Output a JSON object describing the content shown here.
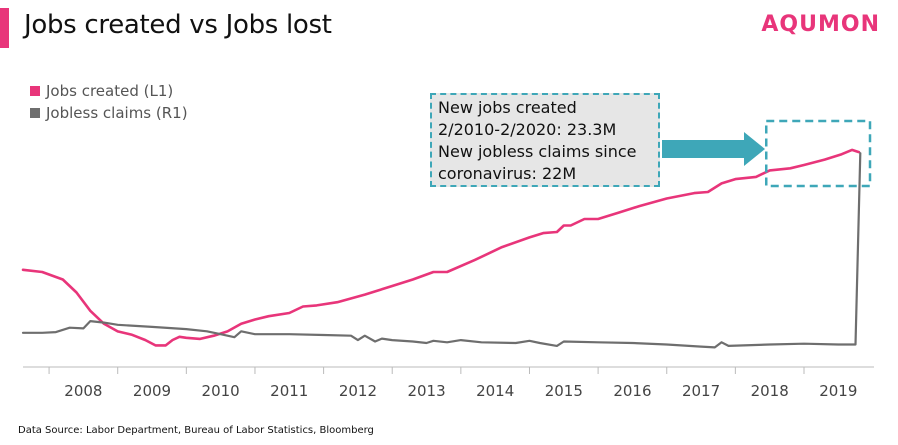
{
  "header": {
    "title": "Jobs created vs Jobs lost",
    "brand": "AQUMON"
  },
  "colors": {
    "accent": "#e8357a",
    "jobs_created": "#e8357a",
    "jobless_claims": "#6e6e6e",
    "annotation": "#3ea7b8"
  },
  "legend": [
    {
      "label": "Jobs created (L1)",
      "color": "#e8357a"
    },
    {
      "label": "Jobless claims (R1)",
      "color": "#6e6e6e"
    }
  ],
  "annotation": {
    "lines": [
      "New jobs created",
      "2/2010-2/2020: 23.3M",
      "New jobless claims since",
      "coronavirus: 22M"
    ]
  },
  "source": "Data Source: Labor Department,  Bureau  of Labor Statistics, Bloomberg",
  "chart_data": {
    "type": "line",
    "x_ticks": [
      "2008",
      "2009",
      "2010",
      "2011",
      "2012",
      "2013",
      "2014",
      "2015",
      "2016",
      "2017",
      "2018",
      "2019"
    ],
    "x_range": [
      2007.62,
      2020.02
    ],
    "grid": false,
    "legend_position": "top-left",
    "series": [
      {
        "name": "Jobs created (L1)",
        "axis": "left",
        "color": "#e8357a",
        "points": [
          [
            2007.62,
            0.65
          ],
          [
            2007.9,
            0.63
          ],
          [
            2008.2,
            0.56
          ],
          [
            2008.4,
            0.44
          ],
          [
            2008.6,
            0.27
          ],
          [
            2008.8,
            0.15
          ],
          [
            2009.0,
            0.08
          ],
          [
            2009.2,
            0.05
          ],
          [
            2009.4,
            0.0
          ],
          [
            2009.55,
            -0.05
          ],
          [
            2009.7,
            -0.05
          ],
          [
            2009.8,
            0.0
          ],
          [
            2009.9,
            0.03
          ],
          [
            2010.0,
            0.02
          ],
          [
            2010.2,
            0.01
          ],
          [
            2010.4,
            0.04
          ],
          [
            2010.6,
            0.08
          ],
          [
            2010.8,
            0.15
          ],
          [
            2011.0,
            0.19
          ],
          [
            2011.2,
            0.22
          ],
          [
            2011.5,
            0.25
          ],
          [
            2011.7,
            0.31
          ],
          [
            2011.9,
            0.32
          ],
          [
            2012.2,
            0.35
          ],
          [
            2012.6,
            0.42
          ],
          [
            2013.0,
            0.5
          ],
          [
            2013.3,
            0.56
          ],
          [
            2013.6,
            0.63
          ],
          [
            2013.8,
            0.63
          ],
          [
            2014.2,
            0.74
          ],
          [
            2014.6,
            0.86
          ],
          [
            2015.0,
            0.95
          ],
          [
            2015.2,
            0.99
          ],
          [
            2015.4,
            1.0
          ],
          [
            2015.5,
            1.06
          ],
          [
            2015.6,
            1.06
          ],
          [
            2015.8,
            1.12
          ],
          [
            2016.0,
            1.12
          ],
          [
            2016.3,
            1.18
          ],
          [
            2016.6,
            1.24
          ],
          [
            2017.0,
            1.31
          ],
          [
            2017.4,
            1.36
          ],
          [
            2017.6,
            1.37
          ],
          [
            2017.8,
            1.45
          ],
          [
            2018.0,
            1.49
          ],
          [
            2018.3,
            1.51
          ],
          [
            2018.5,
            1.57
          ],
          [
            2018.8,
            1.59
          ],
          [
            2019.0,
            1.62
          ],
          [
            2019.3,
            1.67
          ],
          [
            2019.55,
            1.72
          ],
          [
            2019.7,
            1.76
          ],
          [
            2019.8,
            1.74
          ]
        ]
      },
      {
        "name": "Jobless claims (R1)",
        "axis": "right",
        "color": "#6e6e6e",
        "points": [
          [
            2007.62,
            0.7
          ],
          [
            2007.9,
            0.7
          ],
          [
            2008.1,
            0.75
          ],
          [
            2008.3,
            1.05
          ],
          [
            2008.5,
            1.0
          ],
          [
            2008.6,
            1.5
          ],
          [
            2008.8,
            1.4
          ],
          [
            2009.0,
            1.25
          ],
          [
            2009.5,
            1.1
          ],
          [
            2010.0,
            0.95
          ],
          [
            2010.3,
            0.8
          ],
          [
            2010.5,
            0.6
          ],
          [
            2010.7,
            0.4
          ],
          [
            2010.8,
            0.8
          ],
          [
            2011.0,
            0.6
          ],
          [
            2011.5,
            0.6
          ],
          [
            2012.0,
            0.55
          ],
          [
            2012.4,
            0.5
          ],
          [
            2012.5,
            0.2
          ],
          [
            2012.6,
            0.5
          ],
          [
            2012.75,
            0.1
          ],
          [
            2012.85,
            0.3
          ],
          [
            2013.0,
            0.2
          ],
          [
            2013.3,
            0.1
          ],
          [
            2013.5,
            0.0
          ],
          [
            2013.6,
            0.15
          ],
          [
            2013.8,
            0.05
          ],
          [
            2014.0,
            0.2
          ],
          [
            2014.3,
            0.05
          ],
          [
            2014.8,
            0.0
          ],
          [
            2015.0,
            0.15
          ],
          [
            2015.15,
            0.0
          ],
          [
            2015.4,
            -0.2
          ],
          [
            2015.5,
            0.1
          ],
          [
            2016.0,
            0.05
          ],
          [
            2016.5,
            0.0
          ],
          [
            2017.0,
            -0.1
          ],
          [
            2017.5,
            -0.25
          ],
          [
            2017.7,
            -0.3
          ],
          [
            2017.8,
            0.05
          ],
          [
            2017.9,
            -0.2
          ],
          [
            2018.5,
            -0.1
          ],
          [
            2019.0,
            -0.05
          ],
          [
            2019.5,
            -0.1
          ],
          [
            2019.75,
            -0.1
          ],
          [
            2019.82,
            13.0
          ]
        ]
      }
    ],
    "annotation_target": {
      "x_range": [
        2018.45,
        2020.02
      ]
    }
  }
}
